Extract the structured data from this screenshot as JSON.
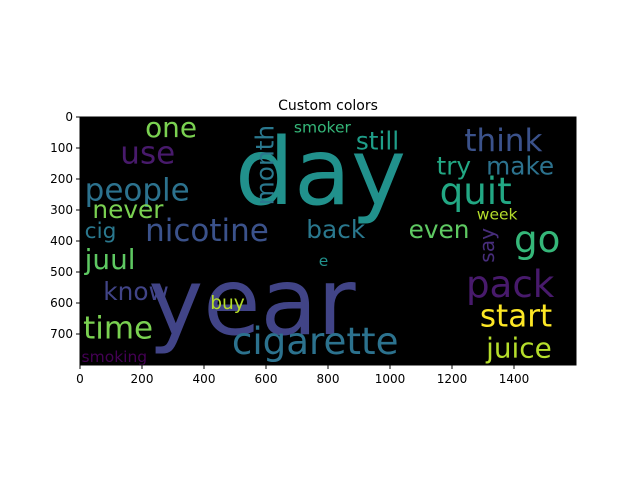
{
  "chart_data": {
    "type": "wordcloud",
    "title": "Custom colors",
    "xlabel": "",
    "ylabel": "",
    "xlim": [
      0,
      1600
    ],
    "ylim": [
      0,
      800
    ],
    "y_inverted": true,
    "x_ticks": [
      "0",
      "200",
      "400",
      "600",
      "800",
      "1000",
      "1200",
      "1400"
    ],
    "y_ticks": [
      "0",
      "100",
      "200",
      "300",
      "400",
      "500",
      "600",
      "700"
    ],
    "background": "#000000",
    "words": [
      {
        "text": "year",
        "x": 220,
        "y": 700,
        "size": 300,
        "color": "#414487",
        "rotate": 0
      },
      {
        "text": "day",
        "x": 500,
        "y": 280,
        "size": 300,
        "color": "#21918c",
        "rotate": 0
      },
      {
        "text": "cigarette",
        "x": 490,
        "y": 765,
        "size": 120,
        "color": "#2c728e",
        "rotate": 0
      },
      {
        "text": "quit",
        "x": 1160,
        "y": 280,
        "size": 120,
        "color": "#22a884",
        "rotate": 0
      },
      {
        "text": "nicotine",
        "x": 210,
        "y": 400,
        "size": 100,
        "color": "#3b528b",
        "rotate": 0
      },
      {
        "text": "people",
        "x": 15,
        "y": 270,
        "size": 100,
        "color": "#2c728e",
        "rotate": 0
      },
      {
        "text": "use",
        "x": 130,
        "y": 150,
        "size": 100,
        "color": "#481a6c",
        "rotate": 0
      },
      {
        "text": "one",
        "x": 210,
        "y": 65,
        "size": 90,
        "color": "#7ad151",
        "rotate": 0
      },
      {
        "text": "think",
        "x": 1240,
        "y": 110,
        "size": 100,
        "color": "#3b528b",
        "rotate": 0
      },
      {
        "text": "make",
        "x": 1310,
        "y": 185,
        "size": 80,
        "color": "#2c728e",
        "rotate": 0
      },
      {
        "text": "try",
        "x": 1150,
        "y": 185,
        "size": 80,
        "color": "#22a884",
        "rotate": 0
      },
      {
        "text": "still",
        "x": 890,
        "y": 105,
        "size": 80,
        "color": "#1f9e89",
        "rotate": 0
      },
      {
        "text": "smoker",
        "x": 690,
        "y": 50,
        "size": 50,
        "color": "#35b779",
        "rotate": 0
      },
      {
        "text": "month",
        "x": 625,
        "y": 285,
        "size": 80,
        "color": "#2a788e",
        "rotate": -90
      },
      {
        "text": "back",
        "x": 730,
        "y": 390,
        "size": 80,
        "color": "#2a788e",
        "rotate": 0
      },
      {
        "text": "even",
        "x": 1060,
        "y": 390,
        "size": 80,
        "color": "#5ec962",
        "rotate": 0
      },
      {
        "text": "go",
        "x": 1400,
        "y": 435,
        "size": 120,
        "color": "#35b779",
        "rotate": 0
      },
      {
        "text": "week",
        "x": 1280,
        "y": 330,
        "size": 50,
        "color": "#b5de2b",
        "rotate": 0
      },
      {
        "text": "say",
        "x": 1335,
        "y": 470,
        "size": 65,
        "color": "#472d7b",
        "rotate": -90
      },
      {
        "text": "never",
        "x": 40,
        "y": 325,
        "size": 80,
        "color": "#7ad151",
        "rotate": 0
      },
      {
        "text": "cig",
        "x": 15,
        "y": 390,
        "size": 70,
        "color": "#2a788e",
        "rotate": 0
      },
      {
        "text": "juul",
        "x": 15,
        "y": 490,
        "size": 90,
        "color": "#5ec962",
        "rotate": 0
      },
      {
        "text": "e",
        "x": 770,
        "y": 480,
        "size": 50,
        "color": "#21918c",
        "rotate": 0
      },
      {
        "text": "pack",
        "x": 1245,
        "y": 580,
        "size": 120,
        "color": "#481a6c",
        "rotate": 0
      },
      {
        "text": "start",
        "x": 1290,
        "y": 675,
        "size": 100,
        "color": "#fde725",
        "rotate": 0
      },
      {
        "text": "juice",
        "x": 1310,
        "y": 775,
        "size": 90,
        "color": "#b5de2b",
        "rotate": 0
      },
      {
        "text": "know",
        "x": 75,
        "y": 590,
        "size": 80,
        "color": "#414487",
        "rotate": 0
      },
      {
        "text": "buy",
        "x": 420,
        "y": 620,
        "size": 60,
        "color": "#b5de2b",
        "rotate": 0
      },
      {
        "text": "time",
        "x": 10,
        "y": 715,
        "size": 100,
        "color": "#7ad151",
        "rotate": 0
      },
      {
        "text": "smoking",
        "x": 5,
        "y": 790,
        "size": 50,
        "color": "#440154",
        "rotate": 0
      }
    ]
  }
}
